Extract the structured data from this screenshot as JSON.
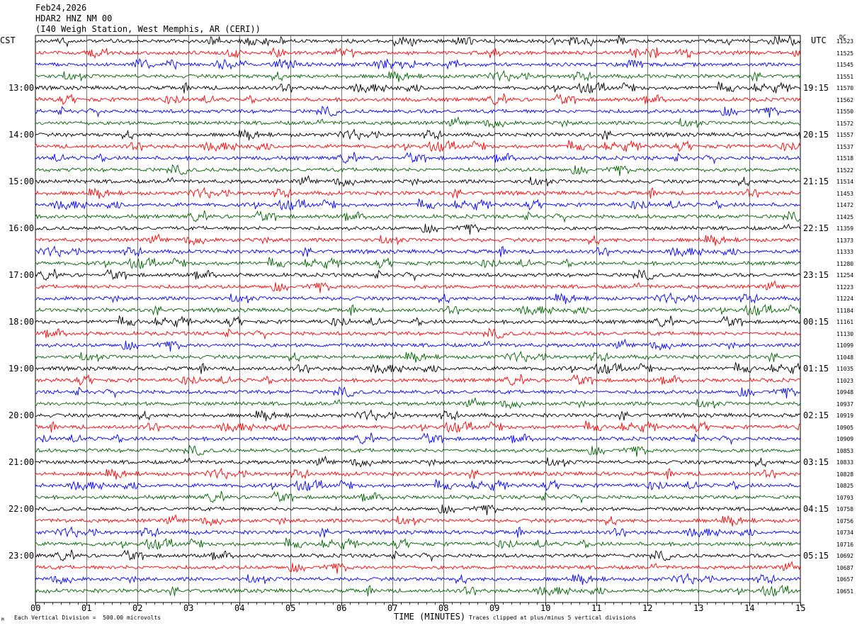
{
  "header": {
    "date": "Feb24,2026",
    "station": "HDAR2 HNZ NM 00",
    "location": "(I40 Weigh Station, West Memphis, AR (CERI))"
  },
  "labels": {
    "left_timezone": "CST",
    "right_timezone": "UTC",
    "dc_header": "DC",
    "xlabel": "TIME (MINUTES)",
    "scale_note": "Each Vertical Division =  500.00 microvolts",
    "clip_note": "Traces clipped at plus/minus 5 vertical divisions",
    "corner_mark": "M"
  },
  "colors": {
    "trace_cycle": [
      "#000000",
      "#ff0000",
      "#0000ff",
      "#006400"
    ],
    "grid": "#000000",
    "background": "#ffffff"
  },
  "chart_data": {
    "type": "line",
    "title": "",
    "xlabel": "TIME (MINUTES)",
    "xlim": [
      0,
      15
    ],
    "x_ticks": [
      "00",
      "01",
      "02",
      "03",
      "04",
      "05",
      "06",
      "07",
      "08",
      "09",
      "10",
      "11",
      "12",
      "13",
      "14",
      "15"
    ],
    "left_hour_labels": [
      "13:00",
      "14:00",
      "15:00",
      "16:00",
      "17:00",
      "18:00",
      "19:00",
      "20:00",
      "21:00",
      "22:00",
      "23:00"
    ],
    "right_hour_labels": [
      "19:15",
      "20:15",
      "21:15",
      "22:15",
      "23:15",
      "00:15",
      "01:15",
      "02:15",
      "03:15",
      "04:15",
      "05:15"
    ],
    "traces_per_hour": 4,
    "trace_count": 48,
    "dc_offsets": [
      11523,
      11525,
      11545,
      11551,
      11570,
      11562,
      11550,
      11572,
      11557,
      11537,
      11518,
      11522,
      11514,
      11453,
      11472,
      11425,
      11359,
      11373,
      11333,
      11280,
      11254,
      11223,
      11224,
      11184,
      11161,
      11130,
      11099,
      11048,
      11035,
      11023,
      10948,
      10937,
      10919,
      10905,
      10909,
      10853,
      10833,
      10828,
      10825,
      10793,
      10758,
      10756,
      10734,
      10716,
      10692,
      10687,
      10657,
      10651
    ]
  }
}
